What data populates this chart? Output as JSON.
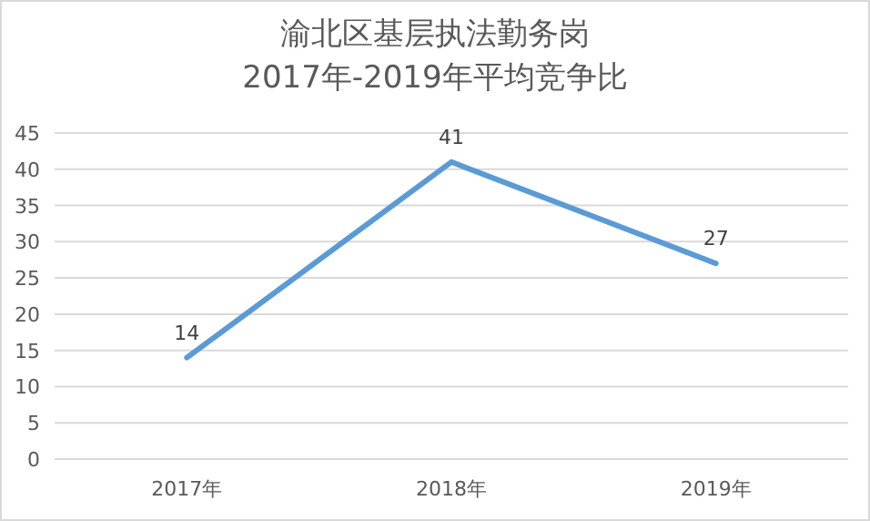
{
  "chart_data": {
    "type": "line",
    "title": "渝北区基层执法勤务岗\n2017年-2019年平均竞争比",
    "categories": [
      "2017年",
      "2018年",
      "2019年"
    ],
    "series": [
      {
        "color": "#5b9bd5",
        "values": [
          14,
          41,
          27
        ]
      }
    ],
    "ylim": [
      0,
      45
    ],
    "yticks": [
      0,
      5,
      10,
      15,
      20,
      25,
      30,
      35,
      40,
      45
    ],
    "grid": "y",
    "data_labels": true,
    "line_style": "solid"
  }
}
